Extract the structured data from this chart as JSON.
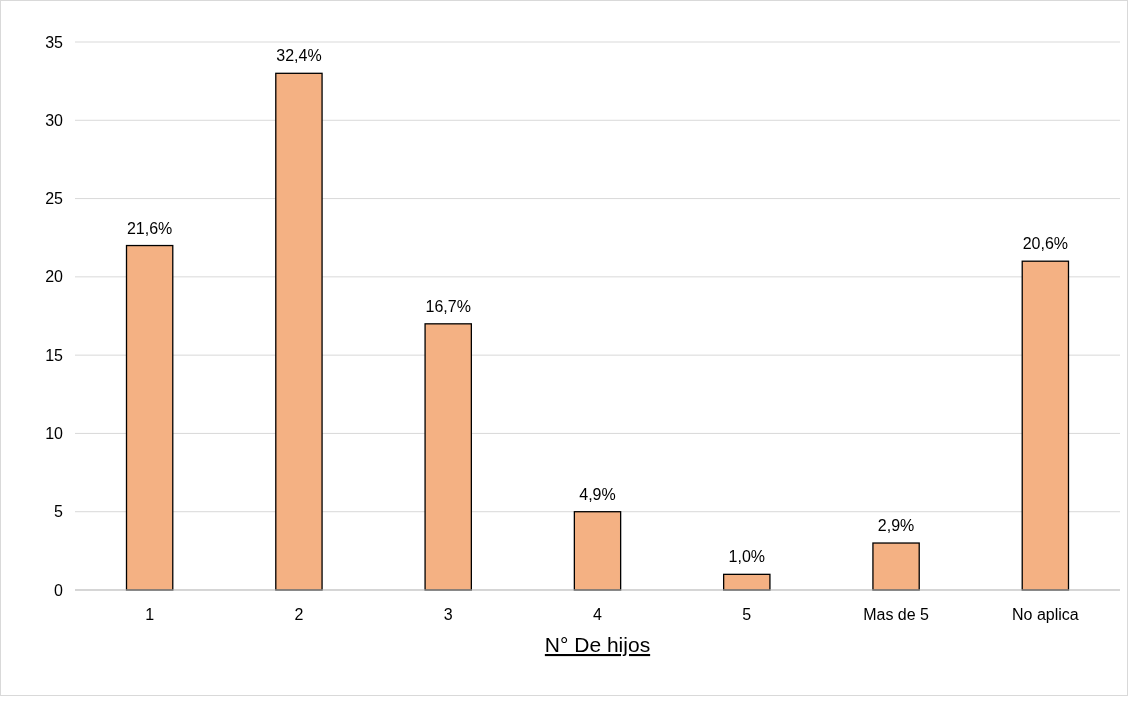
{
  "chart_data": {
    "type": "bar",
    "xlabel": "N° De hijos",
    "categories": [
      "1",
      "2",
      "3",
      "4",
      "5",
      "Mas de 5",
      "No aplica"
    ],
    "values": [
      22,
      33,
      17,
      5,
      1,
      3,
      21
    ],
    "annotations": [
      {
        "text": "21,6%",
        "x": "1",
        "y": 22
      },
      {
        "text": "32,4%",
        "x": "2",
        "y": 33
      },
      {
        "text": "16,7%",
        "x": "3",
        "y": 17
      },
      {
        "text": "4,9%",
        "x": "4",
        "y": 5
      },
      {
        "text": "1,0%",
        "x": "5",
        "y": 1
      },
      {
        "text": "2,9%",
        "x": "Mas de 5",
        "y": 3
      },
      {
        "text": "20,6%",
        "x": "No aplica",
        "y": 21
      }
    ],
    "color": "#f4b183",
    "ylim": [
      0,
      35
    ],
    "yticks": [
      0,
      5,
      10,
      15,
      20,
      25,
      30,
      35
    ],
    "grid": "y"
  }
}
